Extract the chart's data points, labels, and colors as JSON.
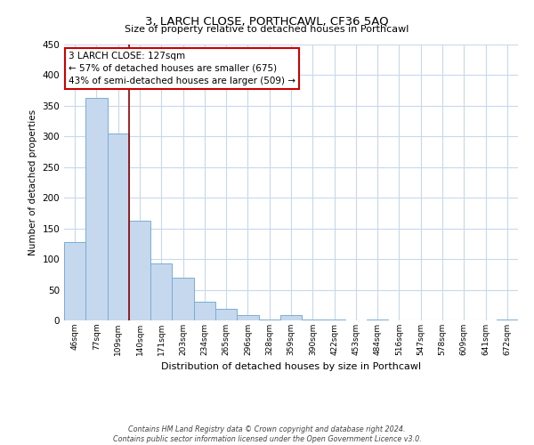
{
  "title": "3, LARCH CLOSE, PORTHCAWL, CF36 5AQ",
  "subtitle": "Size of property relative to detached houses in Porthcawl",
  "xlabel": "Distribution of detached houses by size in Porthcawl",
  "ylabel": "Number of detached properties",
  "bar_labels": [
    "46sqm",
    "77sqm",
    "109sqm",
    "140sqm",
    "171sqm",
    "203sqm",
    "234sqm",
    "265sqm",
    "296sqm",
    "328sqm",
    "359sqm",
    "390sqm",
    "422sqm",
    "453sqm",
    "484sqm",
    "516sqm",
    "547sqm",
    "578sqm",
    "609sqm",
    "641sqm",
    "672sqm"
  ],
  "bar_values": [
    128,
    363,
    305,
    163,
    93,
    70,
    30,
    19,
    8,
    2,
    9,
    2,
    1,
    0,
    1,
    0,
    0,
    0,
    0,
    0,
    2
  ],
  "bar_color": "#c5d8ee",
  "bar_edge_color": "#7aadd4",
  "vline_color": "#8b0000",
  "vline_x_index": 2.5,
  "ylim": [
    0,
    450
  ],
  "yticks": [
    0,
    50,
    100,
    150,
    200,
    250,
    300,
    350,
    400,
    450
  ],
  "annotation_title": "3 LARCH CLOSE: 127sqm",
  "annotation_line1": "← 57% of detached houses are smaller (675)",
  "annotation_line2": "43% of semi-detached houses are larger (509) →",
  "annotation_box_facecolor": "#ffffff",
  "annotation_box_edgecolor": "#cc0000",
  "footer_line1": "Contains HM Land Registry data © Crown copyright and database right 2024.",
  "footer_line2": "Contains public sector information licensed under the Open Government Licence v3.0.",
  "background_color": "#ffffff",
  "grid_color": "#c8d8ec"
}
